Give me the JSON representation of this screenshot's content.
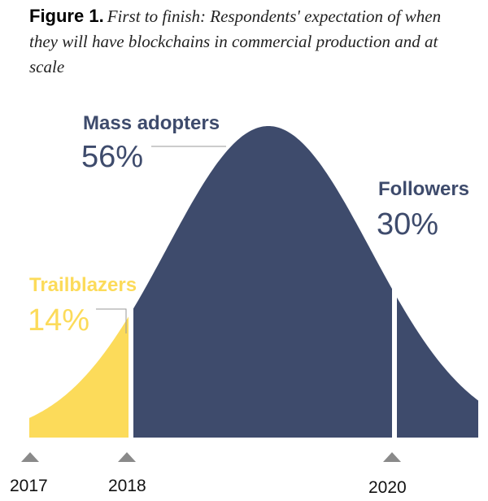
{
  "chart_data": {
    "type": "area",
    "title_label": "Figure 1.",
    "title": "First to finish: Respondents' expectation of when they will have blockchains in commercial production and at scale",
    "xlabel": "",
    "ylabel": "",
    "grid": false,
    "x_ticks": [
      "2017",
      "2018",
      "2020"
    ],
    "segments": [
      {
        "name": "Trailblazers",
        "value": 14,
        "label": "14%",
        "color": "#FCDB5A"
      },
      {
        "name": "Mass adopters",
        "value": 56,
        "label": "56%",
        "color": "#3E4B6C"
      },
      {
        "name": "Followers",
        "value": 30,
        "label": "30%",
        "color": "#3E4B6C"
      }
    ],
    "colors": {
      "trailblazers": "#FCDB5A",
      "adopters": "#3E4B6C",
      "tick_marker": "#8A8A8A",
      "leader_line": "#9A9A9A"
    }
  }
}
